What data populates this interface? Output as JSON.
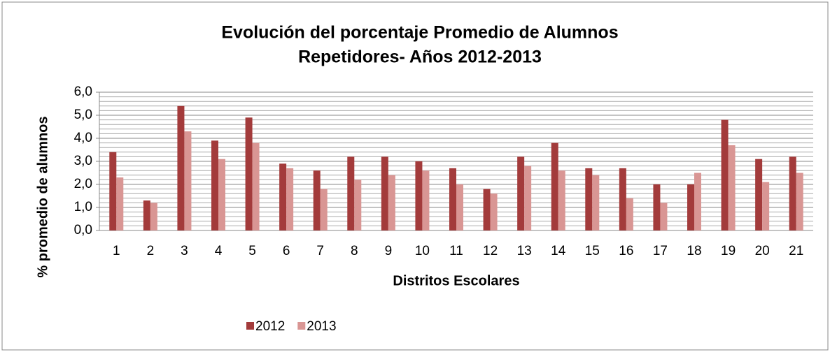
{
  "chart_data": {
    "type": "bar",
    "title": [
      "Evolución del porcentaje Promedio de Alumnos",
      "Repetidores- Años 2012-2013"
    ],
    "x_label": "Distritos Escolares",
    "y_label": "% promedio de alumnos",
    "categories": [
      "1",
      "2",
      "3",
      "4",
      "5",
      "6",
      "7",
      "8",
      "9",
      "10",
      "11",
      "12",
      "13",
      "14",
      "15",
      "16",
      "17",
      "18",
      "19",
      "20",
      "21"
    ],
    "series": [
      {
        "name": "2012",
        "color": "#a33b3b",
        "values": [
          3.4,
          1.3,
          5.4,
          3.9,
          4.9,
          2.9,
          2.6,
          3.2,
          3.2,
          3.0,
          2.7,
          1.8,
          3.2,
          3.8,
          2.7,
          2.7,
          2.0,
          2.0,
          4.8,
          3.1,
          3.2
        ]
      },
      {
        "name": "2013",
        "color": "#d99694",
        "values": [
          2.3,
          1.2,
          4.3,
          3.1,
          3.8,
          2.7,
          1.8,
          2.2,
          2.4,
          2.6,
          2.0,
          1.6,
          2.8,
          2.6,
          2.4,
          1.4,
          1.2,
          2.5,
          3.7,
          2.1,
          2.5
        ]
      }
    ],
    "ylim": [
      0,
      6
    ],
    "yticks": [
      {
        "value": 0,
        "label": "0,0"
      },
      {
        "value": 1,
        "label": "1,0"
      },
      {
        "value": 2,
        "label": "2,0"
      },
      {
        "value": 3,
        "label": "3,0"
      },
      {
        "value": 4,
        "label": "4,0"
      },
      {
        "value": 5,
        "label": "5,0"
      },
      {
        "value": 6,
        "label": "6,0"
      }
    ],
    "grid": true,
    "legend": "bottom"
  }
}
